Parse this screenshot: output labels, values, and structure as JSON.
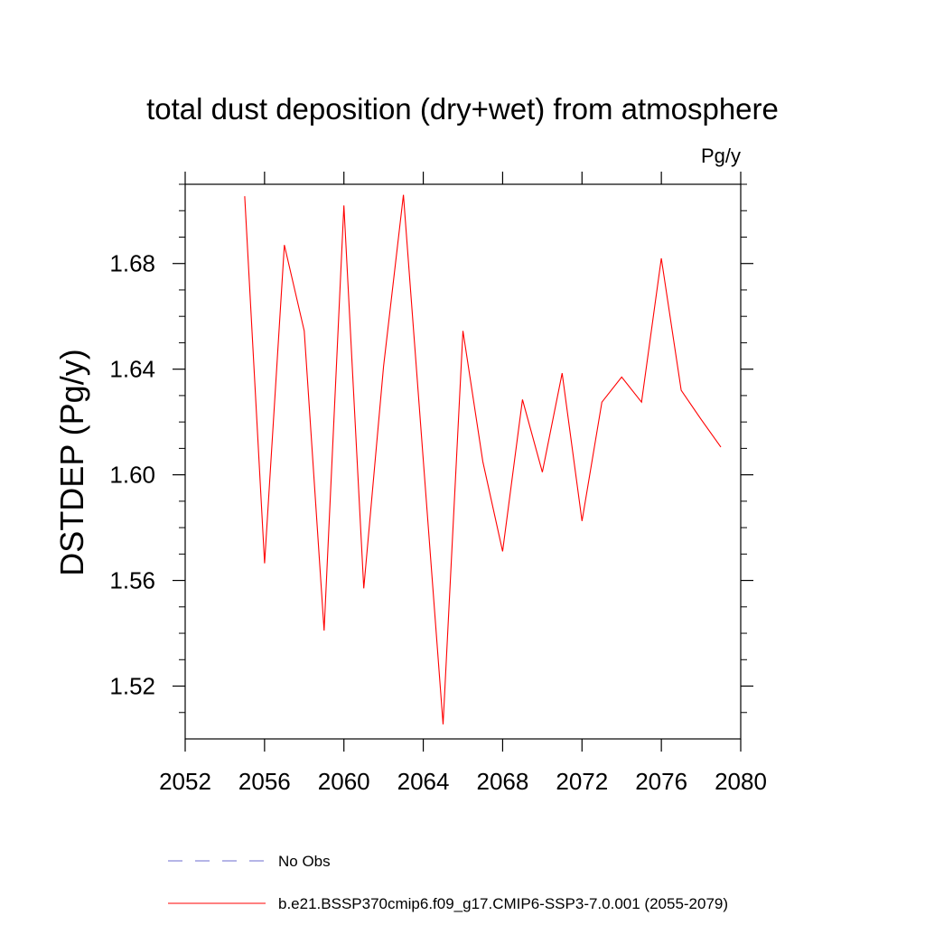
{
  "chart_data": {
    "type": "line",
    "title": "total dust deposition (dry+wet) from atmosphere",
    "units_label": "Pg/y",
    "ylabel": "DSTDEP  (Pg/y)",
    "xlabel": "",
    "xlim": [
      2052,
      2080
    ],
    "ylim": [
      1.5,
      1.71
    ],
    "x_ticks": [
      2052,
      2056,
      2060,
      2064,
      2068,
      2072,
      2076,
      2080
    ],
    "x_tick_labels": [
      "2052",
      "2056",
      "2060",
      "2064",
      "2068",
      "2072",
      "2076",
      "2080"
    ],
    "y_ticks": [
      1.52,
      1.56,
      1.6,
      1.64,
      1.68
    ],
    "y_tick_labels": [
      "1.52",
      "1.56",
      "1.60",
      "1.64",
      "1.68"
    ],
    "grid": false,
    "legend_position": "bottom",
    "series": [
      {
        "name": "b.e21.BSSP370cmip6.f09_g17.CMIP6-SSP3-7.0.001 (2055-2079)",
        "color": "#ff0000",
        "dash": "solid",
        "x": [
          2055,
          2056,
          2057,
          2058,
          2059,
          2060,
          2061,
          2062,
          2063,
          2064,
          2065,
          2066,
          2067,
          2068,
          2069,
          2070,
          2071,
          2072,
          2073,
          2074,
          2075,
          2076,
          2077,
          2078,
          2079
        ],
        "y": [
          1.7055,
          1.5665,
          1.687,
          1.6545,
          1.541,
          1.702,
          1.557,
          1.641,
          1.706,
          1.6055,
          1.5055,
          1.6545,
          1.605,
          1.571,
          1.6285,
          1.601,
          1.6385,
          1.5825,
          1.6275,
          1.637,
          1.6275,
          1.682,
          1.632,
          1.621,
          1.6105
        ]
      }
    ],
    "legend": [
      {
        "name": "No Obs",
        "color": "#6b6bcf",
        "dash": "dashed"
      },
      {
        "name": "b.e21.BSSP370cmip6.f09_g17.CMIP6-SSP3-7.0.001 (2055-2079)",
        "color": "#ff0000",
        "dash": "solid"
      }
    ]
  }
}
